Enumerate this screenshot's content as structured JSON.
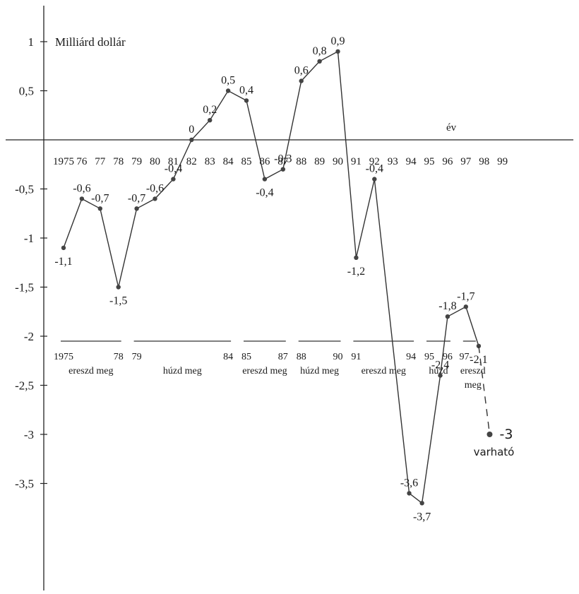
{
  "chart_data": {
    "type": "line",
    "unit_label": "Milliárd dollár",
    "x_axis_label": "év",
    "ylim": [
      -4.1,
      1.1
    ],
    "y_ticks": [
      {
        "v": 1,
        "label": "1"
      },
      {
        "v": 0.5,
        "label": "0,5"
      },
      {
        "v": -0.5,
        "label": "-0,5"
      },
      {
        "v": -1,
        "label": "-1"
      },
      {
        "v": -1.5,
        "label": "-1,5"
      },
      {
        "v": -2,
        "label": "-2"
      },
      {
        "v": -2.5,
        "label": "-2,5"
      },
      {
        "v": -3,
        "label": "-3"
      },
      {
        "v": -3.5,
        "label": "-3,5"
      }
    ],
    "x_ticks": [
      {
        "year": 1975,
        "label": "1975"
      },
      {
        "year": 1976,
        "label": "76"
      },
      {
        "year": 1977,
        "label": "77"
      },
      {
        "year": 1978,
        "label": "78"
      },
      {
        "year": 1979,
        "label": "79"
      },
      {
        "year": 1980,
        "label": "80"
      },
      {
        "year": 1981,
        "label": "81"
      },
      {
        "year": 1982,
        "label": "82"
      },
      {
        "year": 1983,
        "label": "83"
      },
      {
        "year": 1984,
        "label": "84"
      },
      {
        "year": 1985,
        "label": "85"
      },
      {
        "year": 1986,
        "label": "86"
      },
      {
        "year": 1987,
        "label": "87"
      },
      {
        "year": 1988,
        "label": "88"
      },
      {
        "year": 1989,
        "label": "89"
      },
      {
        "year": 1990,
        "label": "90"
      },
      {
        "year": 1991,
        "label": "91"
      },
      {
        "year": 1992,
        "label": "92"
      },
      {
        "year": 1993,
        "label": "93"
      },
      {
        "year": 1994,
        "label": "94"
      },
      {
        "year": 1995,
        "label": "95"
      },
      {
        "year": 1996,
        "label": "96"
      },
      {
        "year": 1997,
        "label": "97"
      },
      {
        "year": 1998,
        "label": "98"
      },
      {
        "year": 1999,
        "label": "99"
      }
    ],
    "series": [
      {
        "points": [
          {
            "x": 1975,
            "y": -1.1,
            "label": "-1,1"
          },
          {
            "x": 1976,
            "y": -0.6,
            "label": "-0,6"
          },
          {
            "x": 1977,
            "y": -0.7,
            "label": "-0,7"
          },
          {
            "x": 1978,
            "y": -1.5,
            "label": "-1,5"
          },
          {
            "x": 1979,
            "y": -0.7,
            "label": "-0,7"
          },
          {
            "x": 1980,
            "y": -0.6,
            "label": "-0,6"
          },
          {
            "x": 1981,
            "y": -0.4,
            "label": "-0,4"
          },
          {
            "x": 1982,
            "y": 0,
            "label": "0"
          },
          {
            "x": 1983,
            "y": 0.2,
            "label": "0,2"
          },
          {
            "x": 1984,
            "y": 0.5,
            "label": "0,5"
          },
          {
            "x": 1985,
            "y": 0.4,
            "label": "0,4"
          },
          {
            "x": 1986,
            "y": -0.4,
            "label": "-0,4"
          },
          {
            "x": 1987,
            "y": -0.3,
            "label": "-0,3"
          },
          {
            "x": 1988,
            "y": 0.6,
            "label": "0,6"
          },
          {
            "x": 1989,
            "y": 0.8,
            "label": "0,8"
          },
          {
            "x": 1990,
            "y": 0.9,
            "label": "0,9"
          },
          {
            "x": 1991,
            "y": -1.2,
            "label": "-1,2"
          },
          {
            "x": 1992,
            "y": -0.4,
            "label": "-0,4"
          },
          {
            "x": 1993.9,
            "y": -3.6,
            "label": "-3,6"
          },
          {
            "x": 1994.6,
            "y": -3.7,
            "label": "-3,7"
          },
          {
            "x": 1995.6,
            "y": -2.4,
            "label": "-2,4"
          },
          {
            "x": 1996,
            "y": -1.8,
            "label": "-1,8"
          },
          {
            "x": 1997,
            "y": -1.7,
            "label": "-1,7"
          },
          {
            "x": 1997.7,
            "y": -2.1,
            "label": "-2,1"
          }
        ]
      }
    ],
    "forecast": {
      "from": {
        "x": 1997.7,
        "y": -2.1
      },
      "to": {
        "x": 1998.3,
        "y": -3
      },
      "label": "-3",
      "note": "varható"
    },
    "periods": [
      {
        "start": 1975,
        "end": 1978,
        "start_label": "1975",
        "end_label": "78",
        "name": "ereszd meg"
      },
      {
        "start": 1979,
        "end": 1984,
        "start_label": "79",
        "end_label": "84",
        "name": "húzd meg"
      },
      {
        "start": 1985,
        "end": 1987,
        "start_label": "85",
        "end_label": "87",
        "name": "ereszd meg"
      },
      {
        "start": 1988,
        "end": 1990,
        "start_label": "88",
        "end_label": "90",
        "name": "húzd meg"
      },
      {
        "start": 1991,
        "end": 1994,
        "start_label": "91",
        "end_label": "94",
        "name": "ereszd meg"
      },
      {
        "start": 1995,
        "end": 1996,
        "start_label": "95",
        "end_label": "96",
        "name": "húzd"
      },
      {
        "start": 1997,
        "end": 1997,
        "start_label": "97-",
        "end_label": "",
        "name": "ereszd meg"
      }
    ],
    "period_line_value": -2,
    "colors": {
      "line": "#333333",
      "marker": "#444444",
      "text": "#1a1a1a",
      "axis": "#222222"
    }
  }
}
